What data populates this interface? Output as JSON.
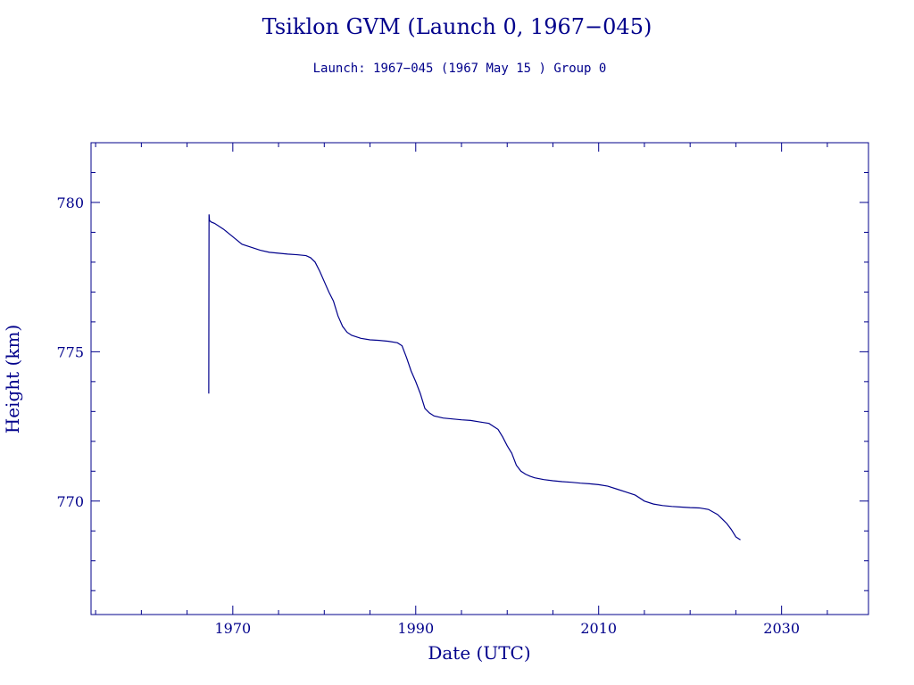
{
  "chart_data": {
    "type": "line",
    "title": "Tsiklon GVM (Launch 0, 1967−045)",
    "subtitle": "Launch: 1967−045  (1967 May 15 )  Group 0",
    "xlabel": "Date (UTC)",
    "ylabel": "Height (km)",
    "xlim": [
      1954.5,
      2039.5
    ],
    "ylim": [
      766.2,
      782.0
    ],
    "x_ticks": [
      1970,
      1990,
      2010,
      2030
    ],
    "x_tick_labels": [
      "1970",
      "1990",
      "2010",
      "2030"
    ],
    "x_minor_step": 5,
    "y_ticks": [
      770,
      775,
      780
    ],
    "y_tick_labels": [
      "770",
      "775",
      "780"
    ],
    "y_minor_step": 1,
    "grid": false,
    "line_color": "#00008b",
    "series": [
      {
        "x": [
          1967.37,
          1967.4,
          1967.45,
          1967.6,
          1968.0,
          1968.5,
          1969.0,
          1970.0,
          1971.0,
          1972.0,
          1973.0,
          1974.0,
          1975.0,
          1976.0,
          1977.0,
          1978.0,
          1978.5,
          1979.0,
          1979.5,
          1980.0,
          1980.5,
          1981.0,
          1981.5,
          1982.0,
          1982.5,
          1983.0,
          1984.0,
          1985.0,
          1986.0,
          1987.0,
          1988.0,
          1988.5,
          1989.0,
          1989.5,
          1990.0,
          1990.5,
          1991.0,
          1991.5,
          1992.0,
          1993.0,
          1994.0,
          1995.0,
          1996.0,
          1997.0,
          1998.0,
          1999.0,
          1999.5,
          2000.0,
          2000.5,
          2001.0,
          2001.5,
          2002.0,
          2002.5,
          2003.0,
          2004.0,
          2005.0,
          2006.0,
          2007.0,
          2008.0,
          2009.0,
          2010.0,
          2011.0,
          2012.0,
          2013.0,
          2014.0,
          2015.0,
          2016.0,
          2017.0,
          2018.0,
          2019.0,
          2020.0,
          2021.0,
          2022.0,
          2023.0,
          2023.5,
          2024.0,
          2024.5,
          2025.0,
          2025.5
        ],
        "y": [
          773.6,
          779.6,
          779.4,
          779.35,
          779.3,
          779.2,
          779.1,
          778.85,
          778.6,
          778.5,
          778.4,
          778.33,
          778.3,
          778.27,
          778.25,
          778.22,
          778.15,
          778.0,
          777.7,
          777.35,
          777.0,
          776.7,
          776.2,
          775.85,
          775.65,
          775.55,
          775.45,
          775.4,
          775.38,
          775.35,
          775.3,
          775.2,
          774.8,
          774.35,
          774.0,
          773.6,
          773.1,
          772.95,
          772.85,
          772.78,
          772.75,
          772.72,
          772.7,
          772.65,
          772.6,
          772.4,
          772.15,
          771.85,
          771.6,
          771.2,
          771.0,
          770.9,
          770.83,
          770.78,
          770.72,
          770.68,
          770.65,
          770.63,
          770.6,
          770.58,
          770.55,
          770.5,
          770.4,
          770.3,
          770.2,
          770.0,
          769.9,
          769.85,
          769.82,
          769.8,
          769.78,
          769.77,
          769.72,
          769.55,
          769.4,
          769.25,
          769.05,
          768.8,
          768.7
        ]
      }
    ]
  }
}
